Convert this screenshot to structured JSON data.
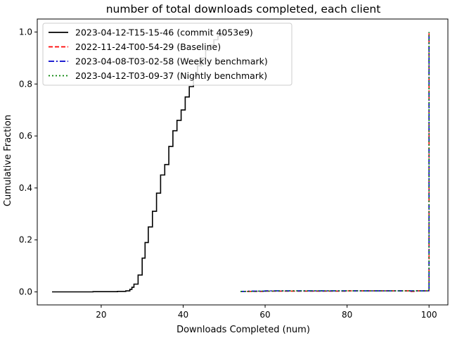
{
  "chart_data": {
    "type": "line",
    "title": "number of total downloads completed, each client",
    "xlabel": "Downloads Completed (num)",
    "ylabel": "Cumulative Fraction",
    "xlim": [
      4.4,
      104.6
    ],
    "ylim": [
      -0.05,
      1.05
    ],
    "xticks": [
      20,
      40,
      60,
      80,
      100
    ],
    "yticks": [
      0.0,
      0.2,
      0.4,
      0.6,
      0.8,
      1.0
    ],
    "xtick_labels": [
      "20",
      "40",
      "60",
      "80",
      "100"
    ],
    "ytick_labels": [
      "0.0",
      "0.2",
      "0.4",
      "0.6",
      "0.8",
      "1.0"
    ],
    "grid": false,
    "legend_position": "upper left",
    "series": [
      {
        "name": "2023-04-12-T15-15-46 (commit 4053e9)",
        "color": "#000000",
        "style": "solid",
        "points": [
          [
            8,
            0.0
          ],
          [
            18,
            0.001
          ],
          [
            24,
            0.002
          ],
          [
            26,
            0.004
          ],
          [
            27,
            0.01
          ],
          [
            27.5,
            0.018
          ],
          [
            28,
            0.03
          ],
          [
            29,
            0.065
          ],
          [
            30,
            0.13
          ],
          [
            30.7,
            0.19
          ],
          [
            31.5,
            0.25
          ],
          [
            32.5,
            0.31
          ],
          [
            33.5,
            0.38
          ],
          [
            34.5,
            0.45
          ],
          [
            35.5,
            0.49
          ],
          [
            36.5,
            0.56
          ],
          [
            37.5,
            0.62
          ],
          [
            38.5,
            0.66
          ],
          [
            39.5,
            0.7
          ],
          [
            40.5,
            0.75
          ],
          [
            41.5,
            0.79
          ],
          [
            42.5,
            0.83
          ],
          [
            43.5,
            0.87
          ],
          [
            44.5,
            0.9
          ],
          [
            45.5,
            0.93
          ],
          [
            46.5,
            0.95
          ],
          [
            47.5,
            0.97
          ],
          [
            48.5,
            0.985
          ],
          [
            49.5,
            0.993
          ],
          [
            50.5,
            1.0
          ]
        ]
      },
      {
        "name": "2022-11-24-T00-54-29 (Baseline)",
        "color": "#ff0000",
        "style": "dashed",
        "points": [
          [
            54,
            0.002
          ],
          [
            60,
            0.003
          ],
          [
            80,
            0.004
          ],
          [
            94,
            0.004
          ],
          [
            95,
            0.002
          ],
          [
            97,
            0.004
          ],
          [
            99,
            0.004
          ],
          [
            99.9,
            0.005
          ],
          [
            100,
            1.0
          ]
        ]
      },
      {
        "name": "2023-04-08-T03-02-58 (Weekly benchmark)",
        "color": "#0000cc",
        "style": "dashdot",
        "points": [
          [
            54,
            0.002
          ],
          [
            56,
            0.003
          ],
          [
            60,
            0.004
          ],
          [
            70,
            0.004
          ],
          [
            80,
            0.004
          ],
          [
            90,
            0.004
          ],
          [
            96,
            0.004
          ],
          [
            99,
            0.004
          ],
          [
            99.9,
            0.005
          ],
          [
            100,
            1.0
          ]
        ]
      },
      {
        "name": "2023-04-12-T03-09-37 (Nightly benchmark)",
        "color": "#008000",
        "style": "dotted",
        "points": [
          [
            54,
            0.002
          ],
          [
            58,
            0.003
          ],
          [
            62,
            0.004
          ],
          [
            70,
            0.004
          ],
          [
            80,
            0.004
          ],
          [
            90,
            0.004
          ],
          [
            99.9,
            0.004
          ],
          [
            100,
            1.0
          ]
        ]
      }
    ]
  }
}
